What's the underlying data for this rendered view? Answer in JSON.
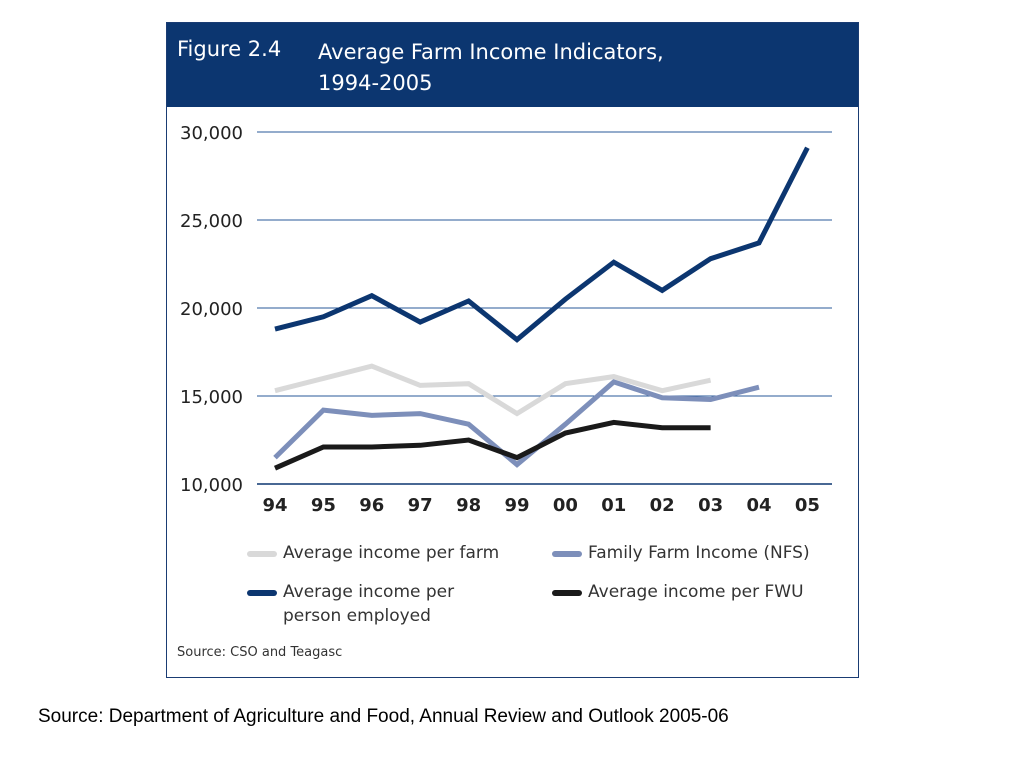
{
  "figure": {
    "number": "Figure 2.4",
    "title_line1": "Average Farm Income Indicators,",
    "title_line2": "1994-2005",
    "source": "Source: CSO and Teagasc",
    "header_color": "#0c3670"
  },
  "page_source": "Source: Department of Agriculture and Food, Annual Review and Outlook 2005-06",
  "chart_data": {
    "type": "line",
    "categories": [
      "94",
      "95",
      "96",
      "97",
      "98",
      "99",
      "00",
      "01",
      "02",
      "03",
      "04",
      "05"
    ],
    "ylim": [
      10000,
      30000
    ],
    "yticks": [
      10000,
      15000,
      20000,
      25000,
      30000
    ],
    "ytick_labels": [
      "10,000",
      "15,000",
      "20,000",
      "25,000",
      "30,000"
    ],
    "grid": true,
    "legend_position": "bottom",
    "series": [
      {
        "name": "Average income per person employed",
        "color": "#0c3670",
        "values": [
          18800,
          19500,
          20700,
          19200,
          20400,
          18200,
          20500,
          22600,
          21000,
          22800,
          23700,
          29100
        ]
      },
      {
        "name": "Average income per farm",
        "color": "#d9d9d9",
        "values": [
          15300,
          16000,
          16700,
          15600,
          15700,
          14000,
          15700,
          16100,
          15300,
          15900,
          null,
          null
        ]
      },
      {
        "name": "Family Farm Income (NFS)",
        "color": "#7d8fba",
        "values": [
          11500,
          14200,
          13900,
          14000,
          13400,
          11100,
          13400,
          15800,
          14900,
          14800,
          15500,
          null
        ]
      },
      {
        "name": "Average income per FWU",
        "color": "#1a1a1a",
        "values": [
          10900,
          12100,
          12100,
          12200,
          12500,
          11500,
          12900,
          13500,
          13200,
          13200,
          null,
          null
        ]
      }
    ]
  },
  "legend": [
    {
      "line1": "Average income per farm",
      "line2": "",
      "color": "#d9d9d9"
    },
    {
      "line1": "Family Farm Income (NFS)",
      "line2": "",
      "color": "#7d8fba"
    },
    {
      "line1": "Average income per",
      "line2": "person employed",
      "color": "#0c3670"
    },
    {
      "line1": "Average income per FWU",
      "line2": "",
      "color": "#1a1a1a"
    }
  ]
}
